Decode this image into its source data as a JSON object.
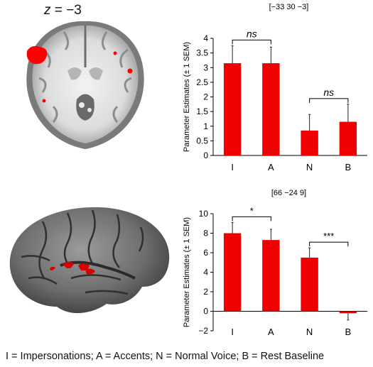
{
  "brain": {
    "axial_label_var": "z",
    "axial_label_eq": " = ",
    "axial_label_val": "−3"
  },
  "caption": "I = Impersonations; A = Accents; N = Normal Voice; B = Rest Baseline",
  "colors": {
    "bar": "#ee0000",
    "activation": "#ff0000",
    "brain": "#8a8a8a"
  },
  "chart_data": [
    {
      "type": "bar",
      "title": "[−33 30 −3]",
      "ylabel": "Parameter Estimates (± 1 SEM)",
      "categories": [
        "I",
        "A",
        "N",
        "B"
      ],
      "values": [
        3.15,
        3.15,
        0.85,
        1.15
      ],
      "errors": [
        0.6,
        0.55,
        0.55,
        0.6
      ],
      "ylim": [
        0,
        4
      ],
      "yticks": [
        "0",
        "0.5",
        "1",
        "1.5",
        "2",
        "2.5",
        "3",
        "3.5",
        "4"
      ],
      "ytick_values": [
        0,
        0.5,
        1,
        1.5,
        2,
        2.5,
        3,
        3.5,
        4
      ],
      "annotations": [
        {
          "from": 0,
          "to": 1,
          "label": "ns"
        },
        {
          "from": 2,
          "to": 3,
          "label": "ns"
        }
      ]
    },
    {
      "type": "bar",
      "title": "[66 −24 9]",
      "ylabel": "Parameter Estimates (± 1 SEM)",
      "categories": [
        "I",
        "A",
        "N",
        "B"
      ],
      "values": [
        8.0,
        7.3,
        5.5,
        -0.2
      ],
      "errors": [
        1.1,
        1.1,
        1.0,
        0.7
      ],
      "ylim": [
        -2,
        10
      ],
      "yticks": [
        "−2",
        "0",
        "2",
        "4",
        "6",
        "8",
        "10"
      ],
      "ytick_values": [
        -2,
        0,
        2,
        4,
        6,
        8,
        10
      ],
      "annotations": [
        {
          "from": 0,
          "to": 1,
          "label": "*"
        },
        {
          "from": 2,
          "to": 3,
          "label": "***"
        }
      ]
    }
  ]
}
